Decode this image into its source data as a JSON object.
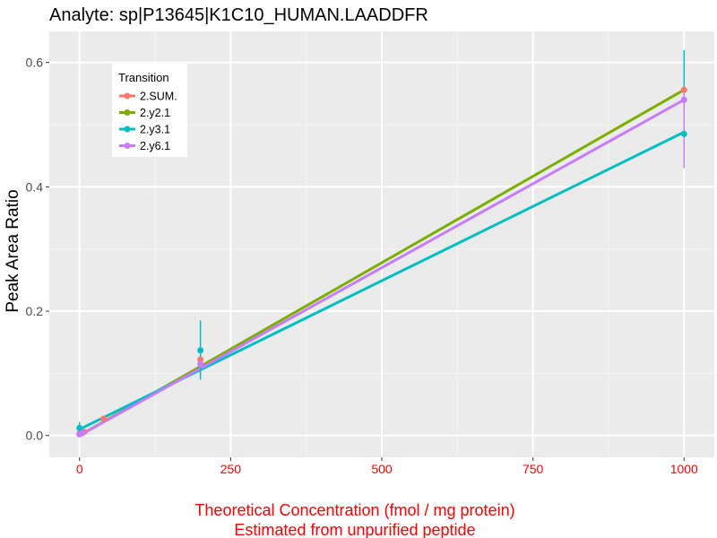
{
  "chart_data": {
    "type": "line",
    "title": "Analyte: sp|P13645|K1C10_HUMAN.LAADDFR",
    "xlabel_lines": [
      "Theoretical Concentration (fmol / mg protein)",
      "Estimated from unpurified peptide"
    ],
    "xlabel_color": "#ff0000",
    "ylabel": "Peak Area Ratio",
    "xlim": [
      -50,
      1050
    ],
    "ylim": [
      -0.035,
      0.65
    ],
    "x_ticks": [
      0,
      250,
      500,
      750,
      1000
    ],
    "x_tick_labels": [
      "0",
      "250",
      "500",
      "750",
      "1000"
    ],
    "x_tick_color": "#ff0000",
    "y_ticks": [
      0.0,
      0.2,
      0.4,
      0.6
    ],
    "y_tick_labels": [
      "0.0",
      "0.2",
      "0.4",
      "0.6"
    ],
    "grid": true,
    "panel_background": "#ebebeb",
    "legend": {
      "title": "Transition",
      "position": "top-left"
    },
    "series": [
      {
        "name": "2.SUM.",
        "color": "#f8766d",
        "points": [
          {
            "x": 0,
            "y": 0.003
          },
          {
            "x": 3,
            "y": 0.004
          },
          {
            "x": 8,
            "y": 0.006
          },
          {
            "x": 40,
            "y": 0.027
          },
          {
            "x": 200,
            "y": 0.122,
            "err": [
              0.115,
              0.129
            ]
          },
          {
            "x": 1000,
            "y": 0.556,
            "err": [
              0.52,
              0.575
            ]
          }
        ],
        "fit": null
      },
      {
        "name": "2.y2.1",
        "color": "#7cae00",
        "points": [],
        "fit": [
          [
            0,
            0.0
          ],
          [
            1000,
            0.556
          ]
        ]
      },
      {
        "name": "2.y3.1",
        "color": "#00bfc4",
        "points": [
          {
            "x": 0,
            "y": 0.012,
            "err": [
              0.008,
              0.022
            ]
          },
          {
            "x": 200,
            "y": 0.137,
            "err": [
              0.09,
              0.185
            ]
          },
          {
            "x": 1000,
            "y": 0.485,
            "err": [
              0.47,
              0.62
            ]
          }
        ],
        "fit": [
          [
            0,
            0.01
          ],
          [
            1000,
            0.488
          ]
        ]
      },
      {
        "name": "2.y6.1",
        "color": "#c77cff",
        "points": [
          {
            "x": 0,
            "y": 0.002
          },
          {
            "x": 5,
            "y": 0.004
          },
          {
            "x": 200,
            "y": 0.115
          },
          {
            "x": 1000,
            "y": 0.54,
            "err": [
              0.43,
              0.56
            ]
          }
        ],
        "fit": [
          [
            0,
            0.0
          ],
          [
            1000,
            0.54
          ]
        ]
      }
    ]
  }
}
